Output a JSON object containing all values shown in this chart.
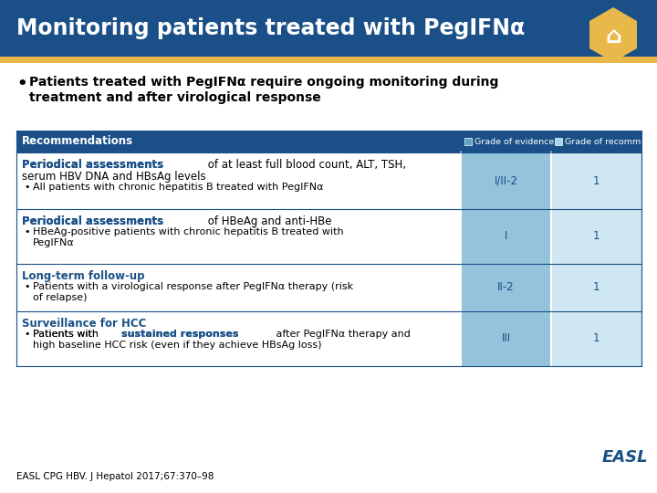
{
  "title": "Monitoring patients treated with PegIFNα",
  "title_bg": "#1a5087",
  "title_color": "#ffffff",
  "gold_color": "#e8b84b",
  "bullet_text_line1": "Patients treated with PegIFNα require ongoing monitoring during",
  "bullet_text_line2": "treatment and after virological response",
  "header_bg": "#1a5087",
  "header_text_color": "#ffffff",
  "header_label": "Recommendations",
  "col1_header": "Grade of evidence",
  "col2_header": "Grade of recommendation",
  "col1_color": "#5ba3c9",
  "col2_color": "#a8d4e8",
  "border_color": "#1a5087",
  "footer_text": "EASL CPG HBV. J Hepatol 2017;67:370–98",
  "bg_color": "#ffffff",
  "rows": [
    {
      "bold": "Periodical assessments",
      "line1_rest": " of at least full blood count, ALT, TSH,",
      "line2": "serum HBV DNA and HBsAg levels",
      "bullet": "All patients with chronic hepatitis B treated with PegIFNα",
      "ev": "I/II-2",
      "rec": "1",
      "bold2": null,
      "bullet_pre": null,
      "bullet_post": null
    },
    {
      "bold": "Periodical assessments",
      "line1_rest": " of HBeAg and anti-HBe",
      "line2": null,
      "bullet": "HBeAg-positive patients with chronic hepatitis B treated with\nPegIFNα",
      "ev": "I",
      "rec": "1",
      "bold2": null,
      "bullet_pre": null,
      "bullet_post": null
    },
    {
      "bold": "Long-term follow-up",
      "line1_rest": null,
      "line2": null,
      "bullet": "Patients with a virological response after PegIFNα therapy (risk\nof relapse)",
      "ev": "II-2",
      "rec": "1",
      "bold2": null,
      "bullet_pre": null,
      "bullet_post": null
    },
    {
      "bold": "Surveillance for HCC",
      "line1_rest": null,
      "line2": null,
      "bullet": null,
      "ev": "III",
      "rec": "1",
      "bullet_pre": "Patients with ",
      "bold2": "sustained responses",
      "bullet_post": " after PegIFNα therapy and\nhigh baseline HCC risk (even if they achieve HBsAg loss)"
    }
  ]
}
